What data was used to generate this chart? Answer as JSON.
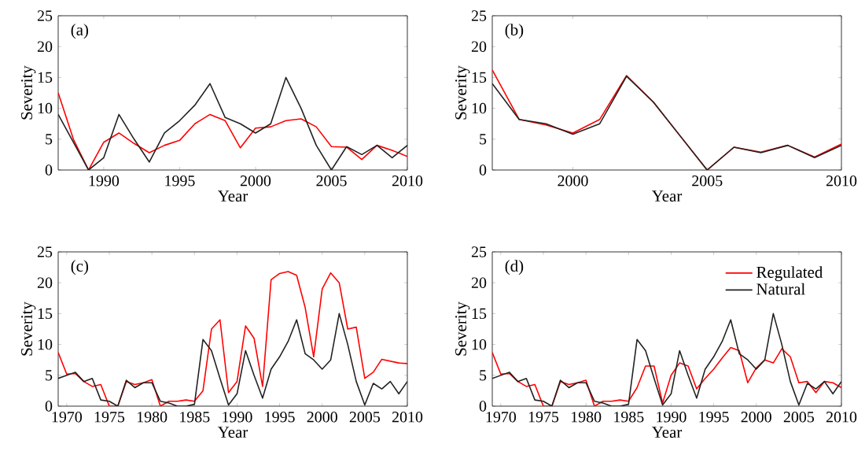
{
  "chart_data": [
    {
      "type": "line",
      "annotations": [
        "(a)"
      ],
      "xlabel": "Year",
      "ylabel": "Severity",
      "x": [
        1987,
        1988,
        1989,
        1990,
        1991,
        1992,
        1993,
        1994,
        1995,
        1996,
        1997,
        1998,
        1999,
        2000,
        2001,
        2002,
        2003,
        2004,
        2005,
        2006,
        2007,
        2008,
        2009,
        2010
      ],
      "xlim": [
        1987,
        2010
      ],
      "xticks": [
        1990,
        1995,
        2000,
        2005,
        2010
      ],
      "ylim": [
        0,
        25
      ],
      "yticks": [
        0,
        5,
        10,
        15,
        20,
        25
      ],
      "legend": false,
      "series": [
        {
          "color": "#ff0000",
          "values": [
            12.5,
            5,
            0,
            4.5,
            6,
            4.3,
            2.8,
            4,
            4.8,
            7.5,
            9,
            8,
            3.6,
            6.8,
            7,
            8,
            8.3,
            7,
            3.8,
            3.7,
            1.7,
            4,
            3.2,
            2.2
          ]
        },
        {
          "color": "#222222",
          "values": [
            9,
            4.5,
            0,
            2,
            9,
            5,
            1.3,
            6,
            8,
            10.5,
            14,
            8.5,
            7.5,
            6,
            7.5,
            15,
            10,
            4,
            0,
            3.8,
            2.5,
            4,
            2,
            4
          ]
        }
      ]
    },
    {
      "type": "line",
      "annotations": [
        "(b)"
      ],
      "xlabel": "Year",
      "ylabel": "Severity",
      "x": [
        1997,
        1998,
        1999,
        2000,
        2001,
        2002,
        2003,
        2004,
        2005,
        2006,
        2007,
        2008,
        2009,
        2010
      ],
      "xlim": [
        1997,
        2010
      ],
      "xticks": [
        2000,
        2005,
        2010
      ],
      "ylim": [
        0,
        25
      ],
      "yticks": [
        0,
        5,
        10,
        15,
        20,
        25
      ],
      "legend": false,
      "series": [
        {
          "color": "#ff0000",
          "values": [
            16.2,
            8.2,
            7.3,
            6,
            8.2,
            15.3,
            11,
            5.5,
            0,
            3.7,
            2.9,
            4,
            2.1,
            4.2
          ]
        },
        {
          "color": "#222222",
          "values": [
            14,
            8.2,
            7.5,
            5.8,
            7.5,
            15.2,
            11,
            5.5,
            0,
            3.7,
            2.8,
            4,
            2,
            4
          ]
        }
      ]
    },
    {
      "type": "line",
      "annotations": [
        "(c)"
      ],
      "xlabel": "Year",
      "ylabel": "Severity",
      "x": [
        1969,
        1970,
        1971,
        1972,
        1973,
        1974,
        1975,
        1976,
        1977,
        1978,
        1979,
        1980,
        1981,
        1982,
        1983,
        1984,
        1985,
        1986,
        1987,
        1988,
        1989,
        1990,
        1991,
        1992,
        1993,
        1994,
        1995,
        1996,
        1997,
        1998,
        1999,
        2000,
        2001,
        2002,
        2003,
        2004,
        2005,
        2006,
        2007,
        2008,
        2009,
        2010
      ],
      "xlim": [
        1969,
        2010
      ],
      "xticks": [
        1970,
        1975,
        1980,
        1985,
        1990,
        1995,
        2000,
        2005,
        2010
      ],
      "ylim": [
        0,
        25
      ],
      "yticks": [
        0,
        5,
        10,
        15,
        20,
        25
      ],
      "legend": false,
      "series": [
        {
          "color": "#ff0000",
          "values": [
            8.7,
            5.2,
            5.3,
            4,
            3.2,
            3.5,
            0,
            0,
            4,
            3.5,
            3.8,
            4.3,
            0,
            0.8,
            0.8,
            1,
            0.8,
            2.5,
            12.5,
            14,
            2.2,
            4,
            13,
            11,
            3.2,
            20.5,
            21.5,
            21.8,
            21.2,
            16,
            8,
            19,
            21.6,
            20,
            12.5,
            12.8,
            4.5,
            5.5,
            7.6,
            7.3,
            7,
            6.9
          ]
        },
        {
          "color": "#222222",
          "values": [
            4.5,
            5,
            5.5,
            4,
            4.5,
            1,
            0.8,
            0,
            4.2,
            3,
            3.8,
            3.8,
            0.8,
            0.5,
            0,
            0,
            0.3,
            10.8,
            9,
            4.5,
            0.2,
            2,
            9,
            5,
            1.3,
            6,
            8,
            10.5,
            14,
            8.5,
            7.5,
            6,
            7.5,
            15,
            10,
            4,
            0.2,
            3.7,
            2.8,
            4,
            2,
            4
          ]
        }
      ]
    },
    {
      "type": "line",
      "annotations": [
        "(d)"
      ],
      "xlabel": "Year",
      "ylabel": "Severity",
      "x": [
        1969,
        1970,
        1971,
        1972,
        1973,
        1974,
        1975,
        1976,
        1977,
        1978,
        1979,
        1980,
        1981,
        1982,
        1983,
        1984,
        1985,
        1986,
        1987,
        1988,
        1989,
        1990,
        1991,
        1992,
        1993,
        1994,
        1995,
        1996,
        1997,
        1998,
        1999,
        2000,
        2001,
        2002,
        2003,
        2004,
        2005,
        2006,
        2007,
        2008,
        2009,
        2010
      ],
      "xlim": [
        1969,
        2010
      ],
      "xticks": [
        1970,
        1975,
        1980,
        1985,
        1990,
        1995,
        2000,
        2005,
        2010
      ],
      "ylim": [
        0,
        25
      ],
      "yticks": [
        0,
        5,
        10,
        15,
        20,
        25
      ],
      "legend": "top right",
      "series": [
        {
          "name": "Regulated",
          "color": "#ff0000",
          "values": [
            8.7,
            5.2,
            5.3,
            4,
            3.2,
            3.5,
            0,
            0,
            4,
            3.5,
            3.8,
            4.2,
            0,
            0.8,
            0.8,
            1,
            0.8,
            3,
            6.5,
            6.5,
            0.5,
            5,
            7,
            6.5,
            2.8,
            4.5,
            6,
            7.8,
            9.5,
            9,
            3.8,
            6.2,
            7.5,
            7,
            9.3,
            8,
            3.8,
            4,
            2.2,
            4,
            3.8,
            3
          ]
        },
        {
          "name": "Natural",
          "color": "#222222",
          "values": [
            4.5,
            5,
            5.5,
            4,
            4.5,
            1,
            0.8,
            0,
            4.2,
            3,
            3.8,
            3.8,
            0.8,
            0.5,
            0,
            0,
            0.3,
            10.8,
            9,
            4.5,
            0.2,
            2,
            9,
            5,
            1.3,
            6,
            8,
            10.5,
            14,
            8.5,
            7.5,
            6,
            7.5,
            15,
            10,
            4,
            0.2,
            3.7,
            2.8,
            4,
            2,
            4
          ]
        }
      ]
    }
  ]
}
